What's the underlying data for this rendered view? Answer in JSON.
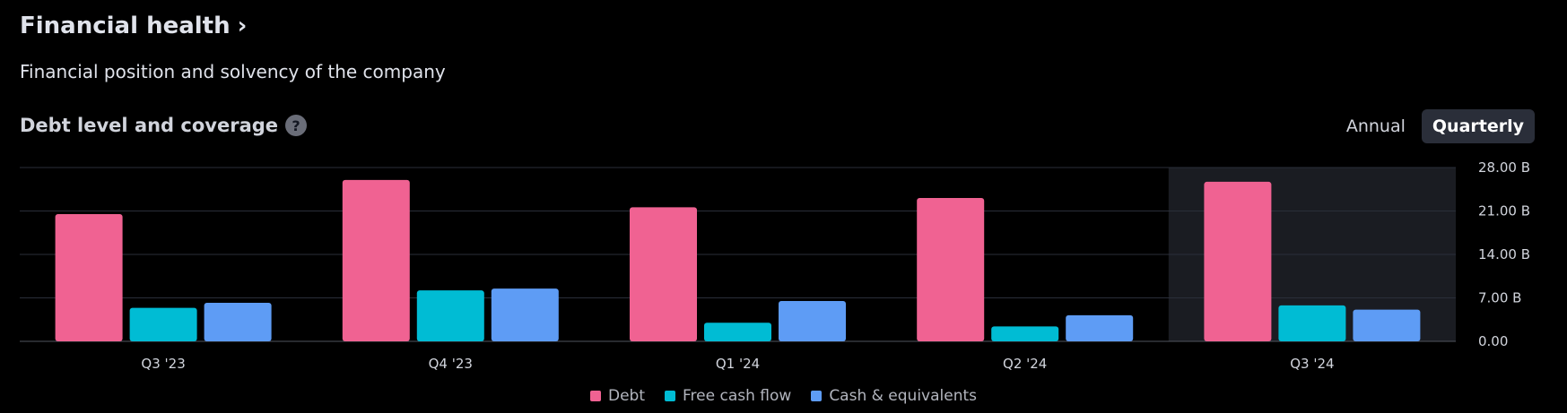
{
  "header": {
    "title": "Financial health",
    "chevron": "›",
    "subtitle": "Financial position and solvency of the company"
  },
  "section": {
    "title": "Debt level and coverage",
    "help_icon": "?"
  },
  "toggle": {
    "annual_label": "Annual",
    "quarterly_label": "Quarterly",
    "selected": "Quarterly"
  },
  "colors": {
    "debt": "#f06292",
    "free_cash_flow": "#00bcd4",
    "cash_equivalents": "#5e9cf5",
    "highlight_bg": "#1a1c22",
    "grid": "#2a2e39"
  },
  "chart_data": {
    "type": "bar",
    "categories": [
      "Q3 '23",
      "Q4 '23",
      "Q1 '24",
      "Q2 '24",
      "Q3 '24"
    ],
    "highlighted_category": "Q3 '24",
    "series": [
      {
        "name": "Debt",
        "color": "#f06292",
        "values": [
          20.5,
          26.0,
          21.6,
          23.1,
          25.7
        ]
      },
      {
        "name": "Free cash flow",
        "color": "#00bcd4",
        "values": [
          5.4,
          8.2,
          3.0,
          2.4,
          5.8
        ]
      },
      {
        "name": "Cash & equivalents",
        "color": "#5e9cf5",
        "values": [
          6.2,
          8.5,
          6.5,
          4.2,
          5.1
        ]
      }
    ],
    "yticks": [
      "0.00",
      "7.00 B",
      "14.00 B",
      "21.00 B",
      "28.00 B"
    ],
    "ylim": [
      0,
      28
    ],
    "grid": true,
    "legend_position": "bottom-center"
  }
}
